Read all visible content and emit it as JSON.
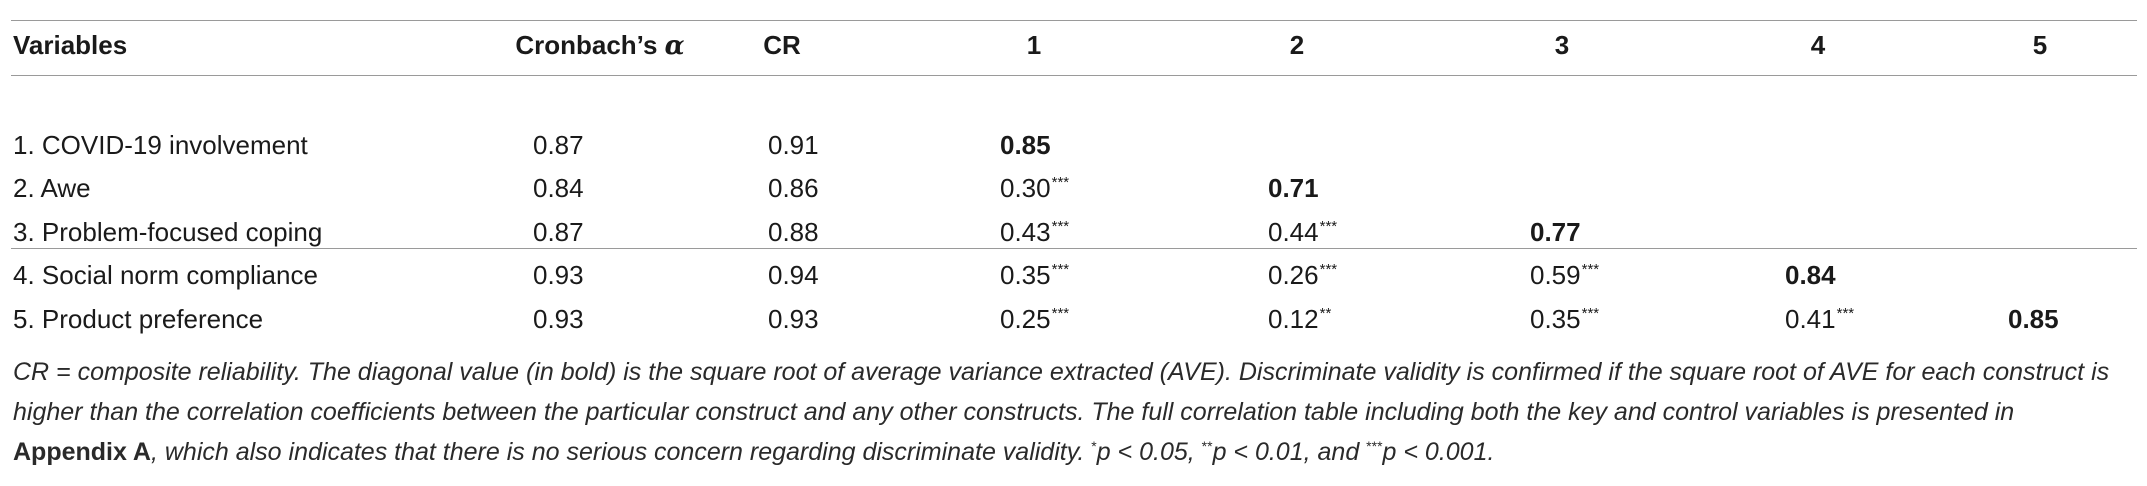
{
  "table": {
    "headers": {
      "variables": "Variables",
      "cronbach_prefix": "Cronbach’s ",
      "cronbach_symbol": "α",
      "cr": "CR",
      "c1": "1",
      "c2": "2",
      "c3": "3",
      "c4": "4",
      "c5": "5"
    },
    "rows": [
      {
        "variable": "1. COVID-19 involvement",
        "alpha": "0.87",
        "cr": "0.91",
        "c1": "0.85",
        "c1_sig": "",
        "c2": "",
        "c2_sig": "",
        "c3": "",
        "c3_sig": "",
        "c4": "",
        "c4_sig": "",
        "c5": "",
        "c5_sig": ""
      },
      {
        "variable": "2. Awe",
        "alpha": "0.84",
        "cr": "0.86",
        "c1": "0.30",
        "c1_sig": "***",
        "c2": "0.71",
        "c2_sig": "",
        "c3": "",
        "c3_sig": "",
        "c4": "",
        "c4_sig": "",
        "c5": "",
        "c5_sig": ""
      },
      {
        "variable": "3. Problem-focused coping",
        "alpha": "0.87",
        "cr": "0.88",
        "c1": "0.43",
        "c1_sig": "***",
        "c2": "0.44",
        "c2_sig": "***",
        "c3": "0.77",
        "c3_sig": "",
        "c4": "",
        "c4_sig": "",
        "c5": "",
        "c5_sig": ""
      },
      {
        "variable": "4. Social norm compliance",
        "alpha": "0.93",
        "cr": "0.94",
        "c1": "0.35",
        "c1_sig": "***",
        "c2": "0.26",
        "c2_sig": "***",
        "c3": "0.59",
        "c3_sig": "***",
        "c4": "0.84",
        "c4_sig": "",
        "c5": "",
        "c5_sig": ""
      },
      {
        "variable": "5. Product preference",
        "alpha": "0.93",
        "cr": "0.93",
        "c1": "0.25",
        "c1_sig": "***",
        "c2": "0.12",
        "c2_sig": "**",
        "c3": "0.35",
        "c3_sig": "***",
        "c4": "0.41",
        "c4_sig": "***",
        "c5": "0.85",
        "c5_sig": ""
      }
    ]
  },
  "note": {
    "text_1": "CR = composite reliability. The diagonal value (in bold) is the square root of average variance extracted (AVE). Discriminate validity is confirmed if the square root of AVE for each construct is higher than the correlation coefficients between the particular construct and any other constructs. The full correlation table including both the key and control variables is presented in ",
    "appendix_ref": "Appendix A",
    "text_2": ", which also indicates that there is no serious concern regarding discriminate validity. ",
    "sig1_mark": "*",
    "sig1_text": "p < 0.05, ",
    "sig2_mark": "**",
    "sig2_text": "p < 0.01, and ",
    "sig3_mark": "***",
    "sig3_text": "p < 0.001."
  }
}
